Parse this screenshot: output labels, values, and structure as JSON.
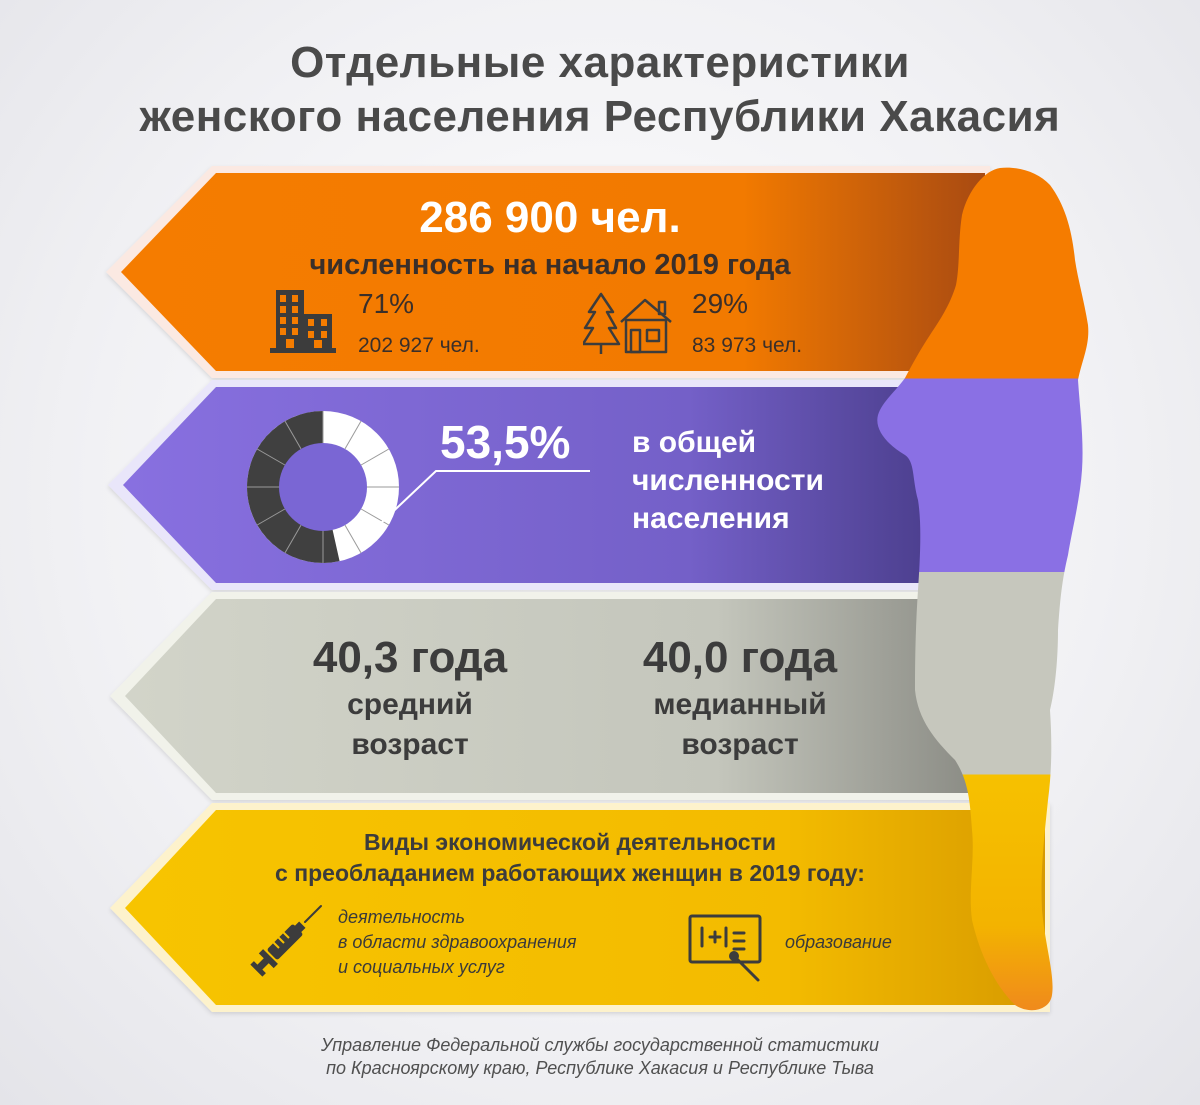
{
  "title": {
    "line1": "Отдельные характеристики",
    "line2": "женского населения Республики Хакасия"
  },
  "population": {
    "value": "286 900 чел.",
    "caption": "численность на начало 2019 года",
    "urban": {
      "percent": "71%",
      "count": "202 927 чел.",
      "icon": "apartment-building-icon"
    },
    "rural": {
      "percent": "29%",
      "count": "83 973 чел.",
      "icon": "house-with-tree-icon"
    }
  },
  "share": {
    "percent": "53,5%",
    "fraction": 0.535,
    "line1": "в общей",
    "line2": "численности",
    "line3": "населения"
  },
  "age": {
    "mean": {
      "value": "40,3 года",
      "line1": "средний",
      "line2": "возраст"
    },
    "median": {
      "value": "40,0 года",
      "line1": "медианный",
      "line2": "возраст"
    }
  },
  "economy": {
    "heading1": "Виды экономической деятельности",
    "heading2": "с преобладанием работающих женщин в 2019 году:",
    "health": {
      "line1": "деятельность",
      "line2": "в области здравоохранения",
      "line3": "и социальных услуг",
      "icon": "syringe-icon"
    },
    "education": {
      "label": "образование",
      "icon": "chalkboard-icon"
    }
  },
  "footer": {
    "line1": "Управление Федеральной службы государственной статистики",
    "line2": "по Красноярскому краю, Республике Хакасия и Республике Тыва"
  },
  "colors": {
    "orange": "#f57c00",
    "purple": "#7b68d4",
    "gray": "#c9cbc0",
    "yellow": "#f6c000",
    "text_dark": "#3a3a3a",
    "title": "#4a4a4a"
  }
}
